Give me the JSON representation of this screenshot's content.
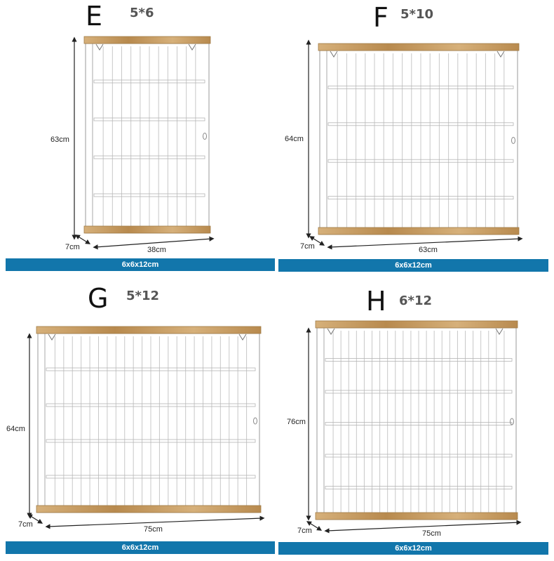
{
  "panels": [
    {
      "letter": "E",
      "grid": "5*6",
      "height_dim": "63cm",
      "depth_dim": "7cm",
      "width_dim": "38cm",
      "cell_size": "6x6x12cm",
      "rows": 5,
      "cols": 6
    },
    {
      "letter": "F",
      "grid": "5*10",
      "height_dim": "64cm",
      "depth_dim": "7cm",
      "width_dim": "63cm",
      "cell_size": "6x6x12cm",
      "rows": 5,
      "cols": 10
    },
    {
      "letter": "G",
      "grid": "5*12",
      "height_dim": "64cm",
      "depth_dim": "7cm",
      "width_dim": "75cm",
      "cell_size": "6x6x12cm",
      "rows": 5,
      "cols": 12
    },
    {
      "letter": "H",
      "grid": "6*12",
      "height_dim": "76cm",
      "depth_dim": "7cm",
      "width_dim": "75cm",
      "cell_size": "6x6x12cm",
      "rows": 6,
      "cols": 12
    }
  ],
  "colors": {
    "wood": "#d6b07a",
    "wood_dark": "#b88a4e",
    "bar": "#1276ab",
    "line": "#c8c8c8"
  }
}
